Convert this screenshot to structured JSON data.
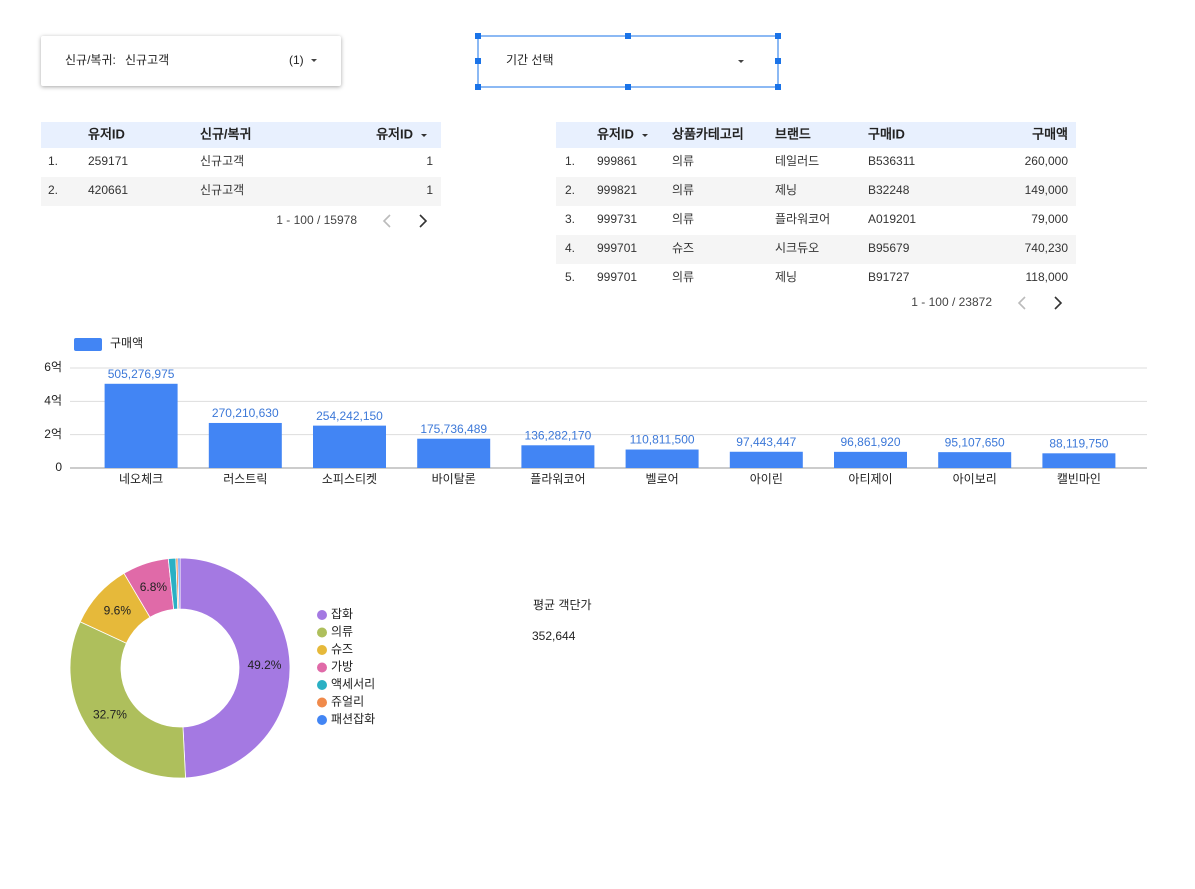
{
  "filter": {
    "label": "신규/복귀:",
    "value": "신규고객",
    "count": "(1)"
  },
  "date_picker": {
    "placeholder": "기간 선택"
  },
  "table1": {
    "headers": [
      "유저ID",
      "신규/복귀",
      "유저ID"
    ],
    "rows": [
      [
        "1.",
        "259171",
        "신규고객",
        "1"
      ],
      [
        "2.",
        "420661",
        "신규고객",
        "1"
      ]
    ],
    "pagination": "1 - 100 / 15978"
  },
  "table2": {
    "headers": [
      "유저ID",
      "상품카테고리",
      "브랜드",
      "구매ID",
      "구매액"
    ],
    "rows": [
      [
        "1.",
        "999861",
        "의류",
        "테일러드",
        "B536311",
        "260,000"
      ],
      [
        "2.",
        "999821",
        "의류",
        "제닝",
        "B32248",
        "149,000"
      ],
      [
        "3.",
        "999731",
        "의류",
        "플라워코어",
        "A019201",
        "79,000"
      ],
      [
        "4.",
        "999701",
        "슈즈",
        "시크듀오",
        "B95679",
        "740,230"
      ],
      [
        "5.",
        "999701",
        "의류",
        "제닝",
        "B91727",
        "118,000"
      ]
    ],
    "pagination": "1 - 100 / 23872"
  },
  "chart_data": [
    {
      "type": "bar",
      "categories": [
        "네오체크",
        "러스트릭",
        "소피스티켓",
        "바이탈론",
        "플라워코어",
        "벨로어",
        "아이린",
        "아티제이",
        "아이보리",
        "캘빈마인"
      ],
      "series": [
        {
          "name": "구매액",
          "color": "#4285f4",
          "values": [
            505276975,
            270210630,
            254242150,
            175736489,
            136282170,
            110811500,
            97443447,
            96861920,
            95107650,
            88119750
          ],
          "value_labels": [
            "505,276,975",
            "270,210,630",
            "254,242,150",
            "175,736,489",
            "136,282,170",
            "110,811,500",
            "97,443,447",
            "96,861,920",
            "95,107,650",
            "88,119,750"
          ]
        }
      ],
      "ylim": [
        0,
        600000000
      ],
      "yticks": [
        0,
        {
          "value": 200000000,
          "label": "2억"
        },
        {
          "value": 400000000,
          "label": "4억"
        },
        {
          "value": 600000000,
          "label": "6억"
        }
      ],
      "grid": true,
      "legend": "top-left"
    },
    {
      "type": "pie",
      "categories": [
        "잡화",
        "의류",
        "슈즈",
        "가방",
        "액세서리",
        "쥬얼리",
        "패션잡화"
      ],
      "values": [
        49.2,
        32.7,
        9.6,
        6.8,
        1.1,
        0.3,
        0.3
      ],
      "value_labels": [
        "49.2%",
        "32.7%",
        "9.6%",
        "6.8%",
        null,
        null,
        null
      ],
      "colors": [
        "#a479e2",
        "#aebf5c",
        "#e6b93a",
        "#e06aa8",
        "#2ab0c4",
        "#f08a4b",
        "#4285f4"
      ],
      "donut": true,
      "legend": "right"
    }
  ],
  "scorecard": {
    "label": "평균 객단가",
    "value": "352,644"
  }
}
